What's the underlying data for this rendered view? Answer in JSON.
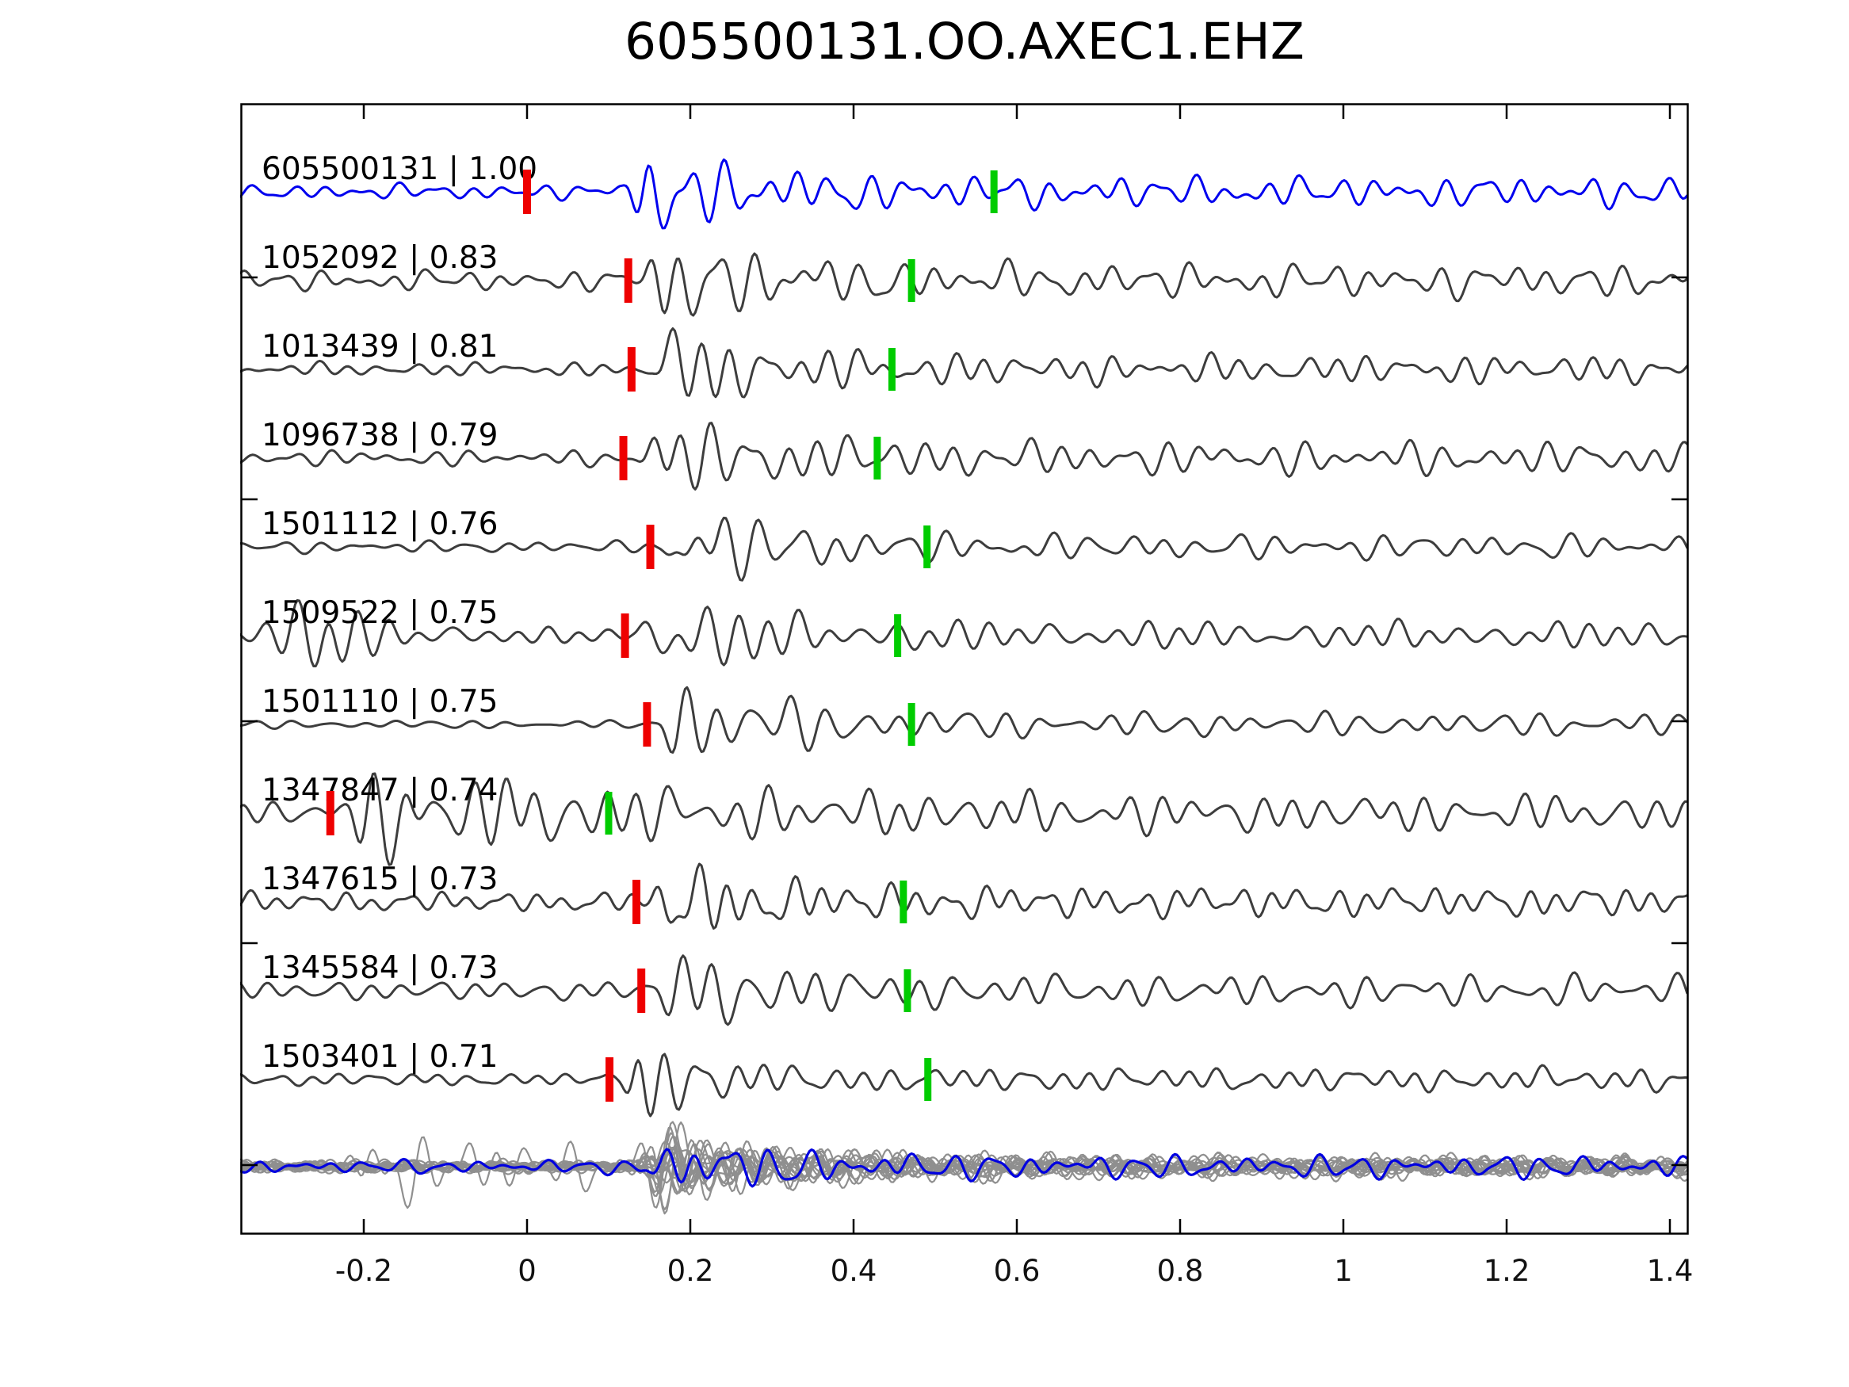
{
  "title": "605500131.OO.AXEC1.EHZ",
  "colors": {
    "background": "#ffffff",
    "template_trace": "#0000ee",
    "detection_trace": "#3d3d3d",
    "overlay_gray": "#8f8f8f",
    "stack_trace": "#0000e0",
    "red_marker": "#ee0000",
    "green_marker": "#00cc00",
    "axis": "#000000",
    "tick_label": "#111111"
  },
  "chart_data": {
    "type": "line",
    "title": "605500131.OO.AXEC1.EHZ",
    "x_unit": "seconds",
    "x_range": [
      -0.351,
      1.423
    ],
    "x_tick_labels": [
      "-0.2",
      "0",
      "0.2",
      "0.4",
      "0.6",
      "0.8",
      "1",
      "1.2",
      "1.4"
    ],
    "x_tick_values": [
      -0.2,
      0,
      0.2,
      0.4,
      0.6,
      0.8,
      1.0,
      1.2,
      1.4
    ],
    "grid": false,
    "legend": false,
    "traces": [
      {
        "label": "605500131 | 1.00",
        "id": "605500131",
        "cc": 1.0,
        "role": "template",
        "red_pick": 0.0,
        "green_pick": 0.572,
        "render": {
          "seed": 101,
          "noise": 8,
          "burst": 56,
          "tau": 0.12,
          "tail": 8,
          "onset": 0.115
        }
      },
      {
        "label": "1052092 | 0.83",
        "id": "1052092",
        "cc": 0.83,
        "role": "detection",
        "red_pick": 0.124,
        "green_pick": 0.471,
        "render": {
          "seed": 202,
          "noise": 11,
          "burst": 54,
          "tau": 0.13,
          "tail": 7,
          "onset": 0.134
        }
      },
      {
        "label": "1013439 | 0.81",
        "id": "1013439",
        "cc": 0.81,
        "role": "detection",
        "red_pick": 0.128,
        "green_pick": 0.447,
        "render": {
          "seed": 303,
          "noise": 7,
          "burst": 50,
          "tau": 0.13,
          "tail": 8,
          "onset": 0.138
        }
      },
      {
        "label": "1096738 | 0.79",
        "id": "1096738",
        "cc": 0.79,
        "role": "detection",
        "red_pick": 0.118,
        "green_pick": 0.429,
        "render": {
          "seed": 404,
          "noise": 8,
          "burst": 42,
          "tau": 0.17,
          "tail": 9,
          "onset": 0.128
        }
      },
      {
        "label": "1501112 | 0.76",
        "id": "1501112",
        "cc": 0.76,
        "role": "detection",
        "red_pick": 0.151,
        "green_pick": 0.49,
        "render": {
          "seed": 505,
          "noise": 6,
          "burst": 58,
          "tau": 0.12,
          "tail": 7,
          "onset": 0.161
        }
      },
      {
        "label": "1509522 | 0.75",
        "id": "1509522",
        "cc": 0.75,
        "role": "detection",
        "red_pick": 0.12,
        "green_pick": 0.454,
        "render": {
          "seed": 606,
          "noise": 8,
          "burst": 54,
          "tau": 0.12,
          "tail": 6,
          "onset": 0.13,
          "extra": [
            {
              "t": -0.3,
              "w": 0.1,
              "amp": 30
            }
          ]
        }
      },
      {
        "label": "1501110 | 0.75",
        "id": "1501110",
        "cc": 0.75,
        "role": "detection",
        "red_pick": 0.147,
        "green_pick": 0.471,
        "render": {
          "seed": 707,
          "noise": 4,
          "burst": 62,
          "tau": 0.13,
          "tail": 8,
          "onset": 0.157
        }
      },
      {
        "label": "1347847 | 0.74",
        "id": "1347847",
        "cc": 0.74,
        "role": "detection",
        "red_pick": -0.241,
        "green_pick": 0.1,
        "render": {
          "seed": 808,
          "noise": 13,
          "burst": 40,
          "tau": 0.34,
          "tail": 6,
          "onset": -0.228
        }
      },
      {
        "label": "1347615 | 0.73",
        "id": "1347615",
        "cc": 0.73,
        "role": "detection",
        "red_pick": 0.134,
        "green_pick": 0.461,
        "render": {
          "seed": 909,
          "noise": 11,
          "burst": 48,
          "tau": 0.12,
          "tail": 6,
          "onset": 0.144
        }
      },
      {
        "label": "1345584 | 0.73",
        "id": "1345584",
        "cc": 0.73,
        "role": "detection",
        "red_pick": 0.14,
        "green_pick": 0.466,
        "render": {
          "seed": 1010,
          "noise": 10,
          "burst": 46,
          "tau": 0.13,
          "tail": 6,
          "onset": 0.15
        }
      },
      {
        "label": "1503401 | 0.71",
        "id": "1503401",
        "cc": 0.71,
        "role": "detection",
        "red_pick": 0.101,
        "green_pick": 0.491,
        "render": {
          "seed": 1111,
          "noise": 7,
          "burst": 72,
          "tau": 0.075,
          "tail": 6,
          "onset": 0.111
        }
      }
    ],
    "overlay": {
      "description": "all aligned detections (gray) with stack trace (blue)",
      "n_gray": 16,
      "render": {
        "noise": 6,
        "burst": 33,
        "tau": 0.15,
        "tail": 4,
        "onset": 0.125,
        "early_line": {
          "index": 4,
          "noise": 8,
          "burst": 38,
          "tau": 0.33,
          "tail": 4,
          "onset": -0.23
        },
        "stack": {
          "seed": 7777,
          "noise": 7,
          "burst": 33,
          "tau": 0.15,
          "tail": 5,
          "onset": 0.122
        }
      }
    }
  }
}
